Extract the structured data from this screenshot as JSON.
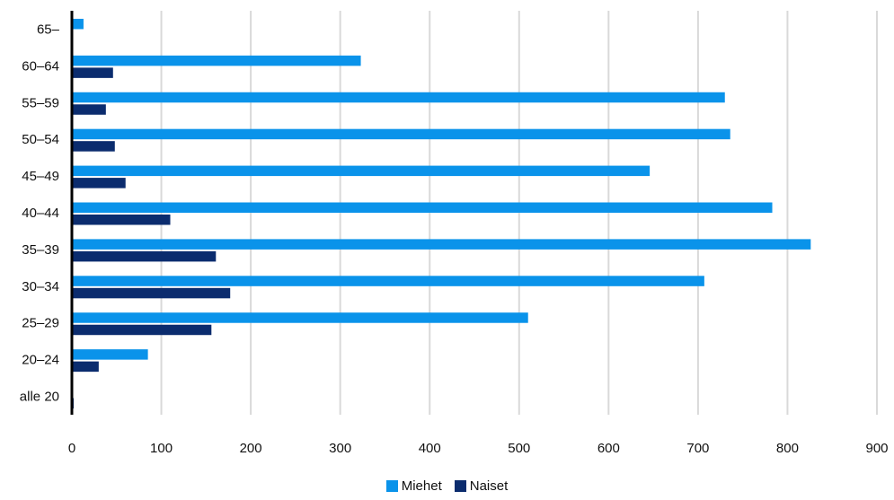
{
  "chart_data": {
    "type": "bar",
    "orientation": "horizontal",
    "categories": [
      "alle 20",
      "20–24",
      "25–29",
      "30–34",
      "35–39",
      "40–44",
      "45–49",
      "50–54",
      "55–59",
      "60–64",
      "65–"
    ],
    "series": [
      {
        "name": "Miehet",
        "color": "#0a93ea",
        "values": [
          0,
          85,
          510,
          707,
          826,
          783,
          646,
          736,
          730,
          323,
          13
        ]
      },
      {
        "name": "Naiset",
        "color": "#0b2c6e",
        "values": [
          2,
          30,
          156,
          177,
          161,
          110,
          60,
          48,
          38,
          46,
          0
        ]
      }
    ],
    "xticks": [
      0,
      100,
      200,
      300,
      400,
      500,
      600,
      700,
      800,
      900
    ],
    "xlim": [
      0,
      900
    ],
    "grid": true,
    "legend_position": "bottom-center",
    "title": "",
    "xlabel": "",
    "ylabel": ""
  }
}
